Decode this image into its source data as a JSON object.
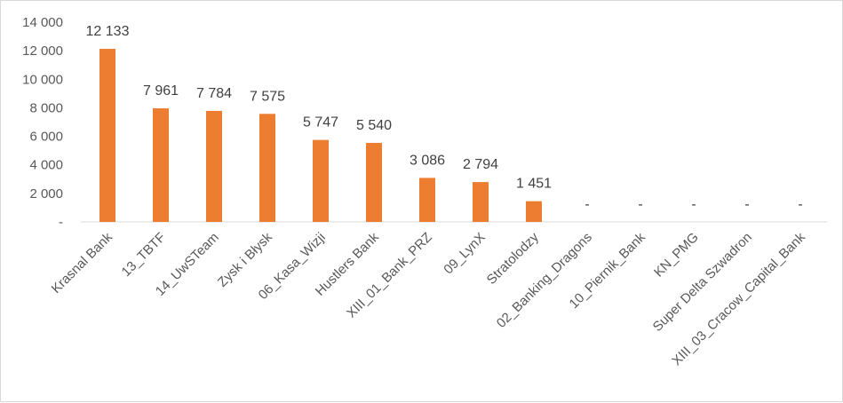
{
  "chart_data": {
    "type": "bar",
    "categories": [
      "Krasnal Bank",
      "13_TBTF",
      "14_UwSTeam",
      "Zysk i Błysk",
      "06_Kasa_Wizji",
      "Hustlers Bank",
      "XIII_01_Bank_PRZ",
      "09_LynX",
      "Stratolodzy",
      "02_Banking_Dragons",
      "10_Piernik_Bank",
      "KN_PMG",
      "Super Delta Szwadron",
      "XIII_03_Cracow_Capital_Bank"
    ],
    "values": [
      12133,
      7961,
      7784,
      7575,
      5747,
      5540,
      3086,
      2794,
      1451,
      0,
      0,
      0,
      0,
      0
    ],
    "data_labels": [
      "12 133",
      "7 961",
      "7 784",
      "7 575",
      "5 747",
      "5 540",
      "3 086",
      "2 794",
      "1 451",
      "-",
      "-",
      "-",
      "-",
      "-"
    ],
    "ylim": [
      0,
      14000
    ],
    "yticks": [
      0,
      2000,
      4000,
      6000,
      8000,
      10000,
      12000,
      14000
    ],
    "ytick_labels": [
      "-",
      "2 000",
      "4 000",
      "6 000",
      "8 000",
      "10 000",
      "12 000",
      "14 000"
    ],
    "title": "",
    "xlabel": "",
    "ylabel": "",
    "grid": false,
    "legend": "none",
    "bar_color": "#ED7D31"
  }
}
